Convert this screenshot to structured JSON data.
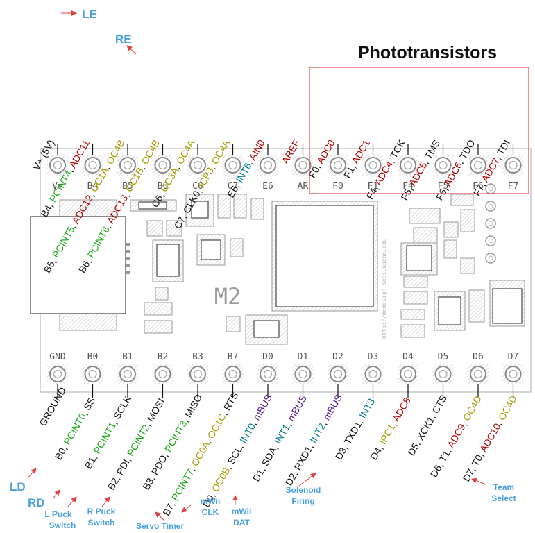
{
  "colors": {
    "black": "#111111",
    "red": "#b00000",
    "green": "#1aa81a",
    "olive": "#a89a00",
    "teal": "#007c8c",
    "purple": "#5a1a88",
    "blue_note": "#4a9fe0",
    "callout_red": "#e04040",
    "box_red": "#e05a5a"
  },
  "board": {
    "name": "M2",
    "url": "http://medesign.seas.upenn.edu",
    "top_pins": [
      "V+",
      "B4",
      "B5",
      "B6",
      "C6",
      "C7",
      "E6",
      "AR",
      "F0",
      "F1",
      "F4",
      "F5",
      "F6",
      "F7"
    ],
    "bottom_pins": [
      "GND",
      "B0",
      "B1",
      "B2",
      "B3",
      "B7",
      "D0",
      "D1",
      "D2",
      "D3",
      "D4",
      "D5",
      "D6",
      "D7"
    ]
  },
  "title": "Phototransistors",
  "top_labels": [
    [
      [
        "V+ (5V)",
        "black"
      ]
    ],
    [
      [
        "B4, ",
        "black"
      ],
      [
        "PCINT4",
        "green"
      ],
      [
        ", ",
        "black"
      ],
      [
        "ADC11",
        "red"
      ]
    ],
    [
      [
        "B5, ",
        "black"
      ],
      [
        "PCINT5",
        "green"
      ],
      [
        ", ",
        "black"
      ],
      [
        "ADC12",
        "red"
      ],
      [
        ", ",
        "black"
      ],
      [
        "OC1A",
        "olive"
      ],
      [
        ", ",
        "black"
      ],
      [
        "OC4B",
        "olive"
      ]
    ],
    [
      [
        "B6, ",
        "black"
      ],
      [
        "PCINT6",
        "green"
      ],
      [
        ", ",
        "black"
      ],
      [
        "ADC13",
        "red"
      ],
      [
        ", ",
        "black"
      ],
      [
        "OC1B",
        "olive"
      ],
      [
        ", ",
        "black"
      ],
      [
        "OC4B",
        "olive"
      ]
    ],
    [
      [
        "C6, ",
        "black"
      ],
      [
        "OC3A",
        "olive"
      ],
      [
        ", ",
        "black"
      ],
      [
        "OC4A",
        "olive"
      ]
    ],
    [
      [
        "C7, CLK0, ",
        "black"
      ],
      [
        "ICP3",
        "olive"
      ],
      [
        ", ",
        "black"
      ],
      [
        "OC4A",
        "olive"
      ]
    ],
    [
      [
        "E6, ",
        "black"
      ],
      [
        "INT6",
        "teal"
      ],
      [
        ", ",
        "black"
      ],
      [
        "AIN0",
        "red"
      ]
    ],
    [
      [
        "AREF",
        "red"
      ]
    ],
    [
      [
        "F0, ",
        "black"
      ],
      [
        "ADC0",
        "red"
      ]
    ],
    [
      [
        "F1, ",
        "black"
      ],
      [
        "ADC1",
        "red"
      ]
    ],
    [
      [
        "F4, ",
        "black"
      ],
      [
        "ADC4",
        "red"
      ],
      [
        ", TCK",
        "black"
      ]
    ],
    [
      [
        "F5, ",
        "black"
      ],
      [
        "ADC5",
        "red"
      ],
      [
        ", TMS",
        "black"
      ]
    ],
    [
      [
        "F6, ",
        "black"
      ],
      [
        "ADC6",
        "red"
      ],
      [
        ", TDO",
        "black"
      ]
    ],
    [
      [
        "F7, ",
        "black"
      ],
      [
        "ADC7",
        "red"
      ],
      [
        ", TDI",
        "black"
      ]
    ]
  ],
  "bottom_labels": [
    [
      [
        "GROUND",
        "black"
      ]
    ],
    [
      [
        "B0, ",
        "black"
      ],
      [
        "PCINT0",
        "green"
      ],
      [
        ", SS",
        "black"
      ]
    ],
    [
      [
        "B1, ",
        "black"
      ],
      [
        "PCINT1",
        "green"
      ],
      [
        ", SCLK",
        "black"
      ]
    ],
    [
      [
        "B2, PDI, ",
        "black"
      ],
      [
        "PCINT2",
        "green"
      ],
      [
        ", MOSI",
        "black"
      ]
    ],
    [
      [
        "B3, PDO, ",
        "black"
      ],
      [
        "PCINT3",
        "green"
      ],
      [
        ", MISO",
        "black"
      ]
    ],
    [
      [
        "B7, ",
        "black"
      ],
      [
        "PCINT7",
        "green"
      ],
      [
        ", ",
        "black"
      ],
      [
        "OC0A",
        "olive"
      ],
      [
        ", ",
        "black"
      ],
      [
        "OC1C",
        "olive"
      ],
      [
        ", RTS",
        "black"
      ]
    ],
    [
      [
        "D0, ",
        "black"
      ],
      [
        "OC0B",
        "olive"
      ],
      [
        ", SCL, ",
        "black"
      ],
      [
        "INT0",
        "teal"
      ],
      [
        ", ",
        "black"
      ],
      [
        "mBUS",
        "purple"
      ]
    ],
    [
      [
        "D1, SDA, ",
        "black"
      ],
      [
        "INT1",
        "teal"
      ],
      [
        ", ",
        "black"
      ],
      [
        "mBUS",
        "purple"
      ]
    ],
    [
      [
        "D2, RXD1, ",
        "black"
      ],
      [
        "INT2",
        "teal"
      ],
      [
        ", ",
        "black"
      ],
      [
        "mBUS",
        "purple"
      ]
    ],
    [
      [
        "D3, TXD1, ",
        "black"
      ],
      [
        "INT3",
        "teal"
      ]
    ],
    [
      [
        "D4, ",
        "black"
      ],
      [
        "IPC1",
        "olive"
      ],
      [
        ", ",
        "black"
      ],
      [
        "ADC8",
        "red"
      ]
    ],
    [
      [
        "D5, XCK1, CTS",
        "black"
      ]
    ],
    [
      [
        "D6, T1, ",
        "black"
      ],
      [
        "ADC9",
        "red"
      ],
      [
        ", ",
        "black"
      ],
      [
        "OC4D",
        "olive"
      ]
    ],
    [
      [
        "D7, T0, ",
        "black"
      ],
      [
        "ADC10",
        "red"
      ],
      [
        ", ",
        "black"
      ],
      [
        "OC4D",
        "olive"
      ]
    ]
  ],
  "notes": {
    "le": "LE",
    "re": "RE",
    "ld": "LD",
    "rd": "RD",
    "l_puck": [
      "L Puck",
      "Switch"
    ],
    "r_puck": [
      "R Puck",
      "Switch"
    ],
    "servo": "Servo Timer",
    "mwii_clk": [
      "mWii",
      "CLK"
    ],
    "mwii_dat": [
      "mWii",
      "DAT"
    ],
    "solenoid": [
      "Solenoid",
      "Firing"
    ],
    "team": [
      "Team",
      "Select"
    ]
  }
}
